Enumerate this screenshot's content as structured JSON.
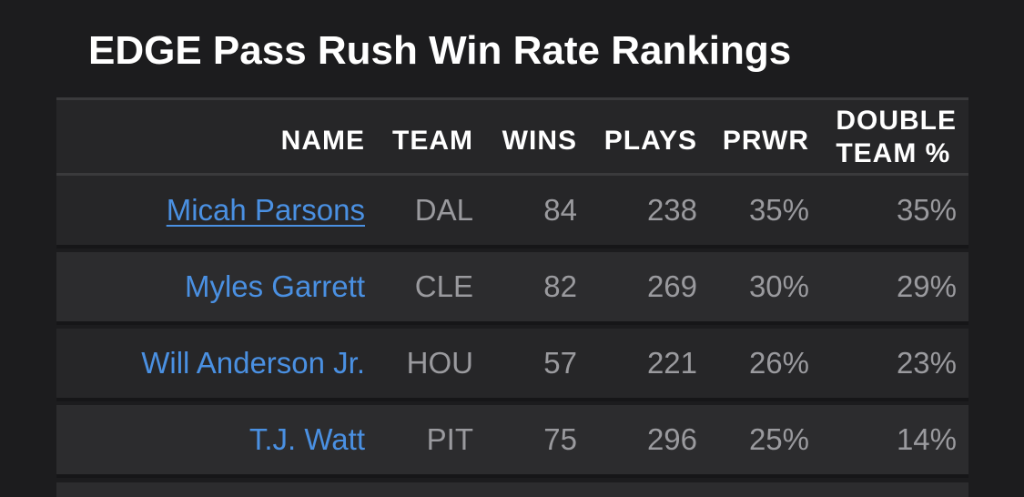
{
  "title": "EDGE Pass Rush Win Rate Rankings",
  "columns": {
    "name": "NAME",
    "team": "TEAM",
    "wins": "WINS",
    "plays": "PLAYS",
    "prwr": "PRWR",
    "double_team_line1": "DOUBLE",
    "double_team_line2": "TEAM %"
  },
  "rows": [
    {
      "name": "Micah Parsons",
      "team": "DAL",
      "wins": "84",
      "plays": "238",
      "prwr": "35%",
      "double_team": "35%"
    },
    {
      "name": "Myles Garrett",
      "team": "CLE",
      "wins": "82",
      "plays": "269",
      "prwr": "30%",
      "double_team": "29%"
    },
    {
      "name": "Will Anderson Jr.",
      "team": "HOU",
      "wins": "57",
      "plays": "221",
      "prwr": "26%",
      "double_team": "23%"
    },
    {
      "name": "T.J. Watt",
      "team": "PIT",
      "wins": "75",
      "plays": "296",
      "prwr": "25%",
      "double_team": "14%"
    }
  ],
  "colors": {
    "background": "#1c1c1e",
    "row_odd": "#262628",
    "row_even": "#2c2c2e",
    "link": "#4a90e2",
    "value_text": "#9a9a9e",
    "header_text": "#ffffff"
  }
}
